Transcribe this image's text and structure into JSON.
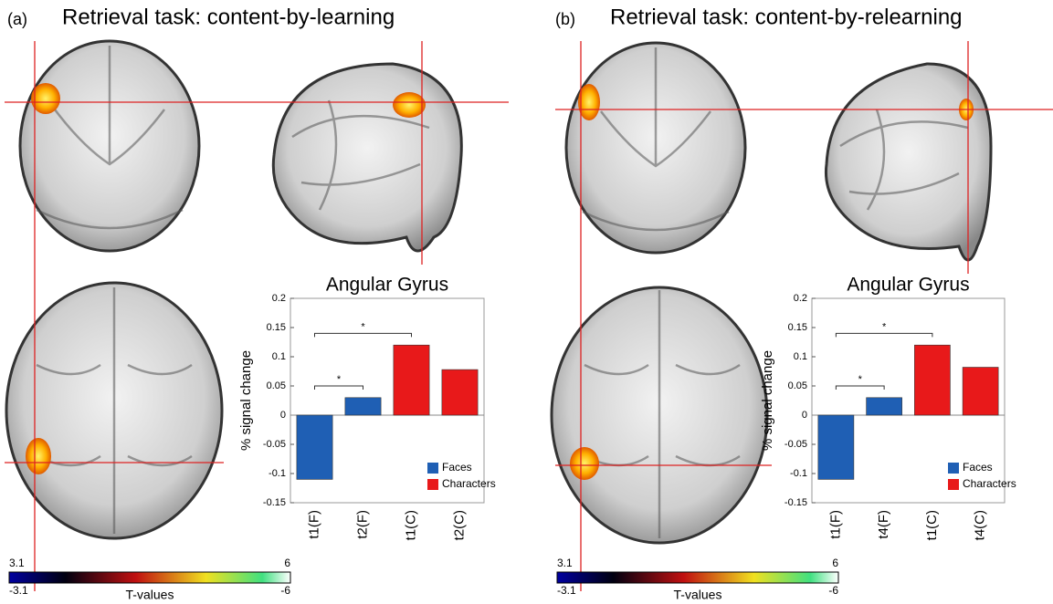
{
  "panels": [
    {
      "label": "(a)",
      "title": "Retrieval task: content-by-learning",
      "colorbar": {
        "top_min": "3.1",
        "top_max": "6",
        "bottom_min": "-3.1",
        "bottom_max": "-6",
        "label": "T-values"
      }
    },
    {
      "label": "(b)",
      "title": "Retrieval task: content-by-relearning",
      "colorbar": {
        "top_min": "3.1",
        "top_max": "6",
        "bottom_min": "-3.1",
        "bottom_max": "-6",
        "label": "T-values"
      }
    }
  ],
  "chart_data": [
    {
      "type": "bar",
      "title": "Angular Gyrus",
      "y_label": "% signal change",
      "categories": [
        "t1(F)",
        "t2(F)",
        "t1(C)",
        "t2(C)"
      ],
      "series": [
        {
          "name": "Faces",
          "color": "#1f5fb4",
          "values": [
            -0.11,
            0.03,
            null,
            null
          ]
        },
        {
          "name": "Characters",
          "color": "#e8191a",
          "values": [
            null,
            null,
            0.12,
            0.078
          ]
        }
      ],
      "ylim": [
        -0.15,
        0.2
      ],
      "yticks": [
        -0.15,
        -0.1,
        -0.05,
        0,
        0.05,
        0.1,
        0.15,
        0.2
      ],
      "annotations": [
        {
          "text": "*",
          "between": [
            0,
            1
          ],
          "y": 0.05
        },
        {
          "text": "*",
          "between": [
            0,
            2
          ],
          "y": 0.14
        }
      ]
    },
    {
      "type": "bar",
      "title": "Angular Gyrus",
      "y_label": "% signal change",
      "categories": [
        "t1(F)",
        "t4(F)",
        "t1(C)",
        "t4(C)"
      ],
      "series": [
        {
          "name": "Faces",
          "color": "#1f5fb4",
          "values": [
            -0.11,
            0.03,
            null,
            null
          ]
        },
        {
          "name": "Characters",
          "color": "#e8191a",
          "values": [
            null,
            null,
            0.12,
            0.082
          ]
        }
      ],
      "ylim": [
        -0.15,
        0.2
      ],
      "yticks": [
        -0.15,
        -0.1,
        -0.05,
        0,
        0.05,
        0.1,
        0.15,
        0.2
      ],
      "annotations": [
        {
          "text": "*",
          "between": [
            0,
            1
          ],
          "y": 0.05
        },
        {
          "text": "*",
          "between": [
            0,
            2
          ],
          "y": 0.14
        }
      ]
    }
  ]
}
